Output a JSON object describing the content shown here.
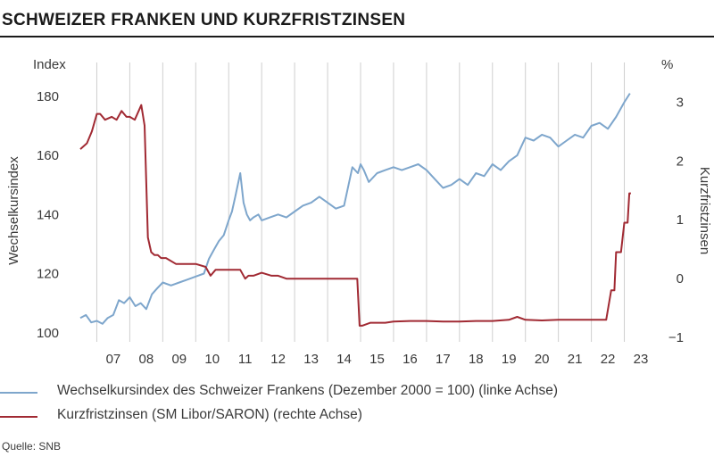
{
  "page": {
    "title": "SCHWEIZER FRANKEN UND KURZFRISTZINSEN",
    "source": "Quelle: SNB"
  },
  "chart_data": {
    "type": "line",
    "left_axis": {
      "unit": "Index",
      "label": "Wechselkursindex",
      "ticks": [
        100,
        120,
        140,
        160,
        180
      ],
      "range": [
        96,
        186
      ]
    },
    "right_axis": {
      "unit": "%",
      "label": "Kurzfristzinsen",
      "ticks": [
        -1,
        0,
        1,
        2,
        3
      ],
      "range": [
        -1.12,
        3.4
      ]
    },
    "x_axis": {
      "ticks": [
        "07",
        "08",
        "09",
        "10",
        "11",
        "12",
        "13",
        "14",
        "15",
        "16",
        "17",
        "18",
        "19",
        "20",
        "21",
        "22",
        "23"
      ],
      "range": [
        2006.5,
        2023.5
      ]
    },
    "grid": "vertical",
    "legend_placement": "bottom",
    "colors": {
      "index_line": "#7ea6cc",
      "rate_line": "#a12a33",
      "grid": "#cfcfcf"
    },
    "series": [
      {
        "name": "Wechselkursindex des Schweizer Frankens (Dezember 2000 = 100) (linke Achse)",
        "axis": "left",
        "x": [
          2006.5,
          2006.67,
          2006.83,
          2007.0,
          2007.17,
          2007.33,
          2007.5,
          2007.67,
          2007.83,
          2008.0,
          2008.17,
          2008.33,
          2008.5,
          2008.67,
          2008.83,
          2009.0,
          2009.25,
          2009.5,
          2009.75,
          2010.0,
          2010.25,
          2010.4,
          2010.55,
          2010.7,
          2010.85,
          2011.0,
          2011.1,
          2011.2,
          2011.35,
          2011.45,
          2011.55,
          2011.65,
          2011.75,
          2011.9,
          2012.0,
          2012.25,
          2012.5,
          2012.75,
          2013.0,
          2013.25,
          2013.5,
          2013.75,
          2014.0,
          2014.25,
          2014.5,
          2014.75,
          2014.92,
          2015.0,
          2015.1,
          2015.25,
          2015.5,
          2015.75,
          2016.0,
          2016.25,
          2016.5,
          2016.75,
          2017.0,
          2017.25,
          2017.5,
          2017.75,
          2018.0,
          2018.25,
          2018.5,
          2018.75,
          2019.0,
          2019.25,
          2019.5,
          2019.75,
          2020.0,
          2020.25,
          2020.5,
          2020.75,
          2021.0,
          2021.25,
          2021.5,
          2021.75,
          2022.0,
          2022.25,
          2022.5,
          2022.75,
          2023.0,
          2023.17
        ],
        "values": [
          105,
          106,
          103.5,
          104,
          103,
          105,
          106,
          111,
          110,
          112,
          109,
          110,
          108,
          113,
          115,
          117,
          116,
          117,
          118,
          119,
          120,
          125,
          128,
          131,
          133,
          138,
          141,
          146,
          154,
          144,
          140,
          138,
          139,
          140,
          138,
          139,
          140,
          139,
          141,
          143,
          144,
          146,
          144,
          142,
          143,
          156,
          154,
          157,
          155,
          151,
          154,
          155,
          156,
          155,
          156,
          157,
          155,
          152,
          149,
          150,
          152,
          150,
          154,
          153,
          157,
          155,
          158,
          160,
          166,
          165,
          167,
          166,
          163,
          165,
          167,
          166,
          170,
          171,
          169,
          173,
          178,
          181
        ]
      },
      {
        "name": "Kurzfristzinsen (SM Libor/SARON) (rechte Achse)",
        "axis": "right",
        "x": [
          2006.5,
          2006.7,
          2006.85,
          2007.0,
          2007.1,
          2007.25,
          2007.45,
          2007.6,
          2007.75,
          2007.9,
          2008.0,
          2008.15,
          2008.35,
          2008.45,
          2008.55,
          2008.65,
          2008.75,
          2008.85,
          2008.95,
          2009.1,
          2009.4,
          2009.7,
          2010.0,
          2010.3,
          2010.45,
          2010.6,
          2010.8,
          2011.0,
          2011.35,
          2011.5,
          2011.6,
          2011.75,
          2012.0,
          2012.3,
          2012.5,
          2012.75,
          2013.0,
          2013.5,
          2014.0,
          2014.5,
          2014.9,
          2014.97,
          2015.05,
          2015.3,
          2015.5,
          2015.75,
          2016.0,
          2016.5,
          2017.0,
          2017.5,
          2018.0,
          2018.5,
          2019.0,
          2019.5,
          2019.75,
          2020.0,
          2020.5,
          2021.0,
          2021.5,
          2022.0,
          2022.45,
          2022.6,
          2022.7,
          2022.75,
          2022.9,
          2023.0,
          2023.1,
          2023.15,
          2023.2
        ],
        "values": [
          2.2,
          2.3,
          2.5,
          2.8,
          2.8,
          2.7,
          2.75,
          2.7,
          2.85,
          2.75,
          2.75,
          2.7,
          2.95,
          2.6,
          0.7,
          0.45,
          0.4,
          0.4,
          0.35,
          0.35,
          0.25,
          0.25,
          0.25,
          0.2,
          0.05,
          0.15,
          0.15,
          0.15,
          0.15,
          0.0,
          0.05,
          0.05,
          0.1,
          0.05,
          0.05,
          0.0,
          0.0,
          0.0,
          0.0,
          0.0,
          0.0,
          -0.8,
          -0.8,
          -0.75,
          -0.75,
          -0.75,
          -0.73,
          -0.72,
          -0.72,
          -0.73,
          -0.73,
          -0.72,
          -0.72,
          -0.7,
          -0.65,
          -0.7,
          -0.71,
          -0.7,
          -0.7,
          -0.7,
          -0.7,
          -0.2,
          -0.2,
          0.45,
          0.45,
          0.95,
          0.95,
          1.45,
          1.45
        ]
      }
    ]
  }
}
